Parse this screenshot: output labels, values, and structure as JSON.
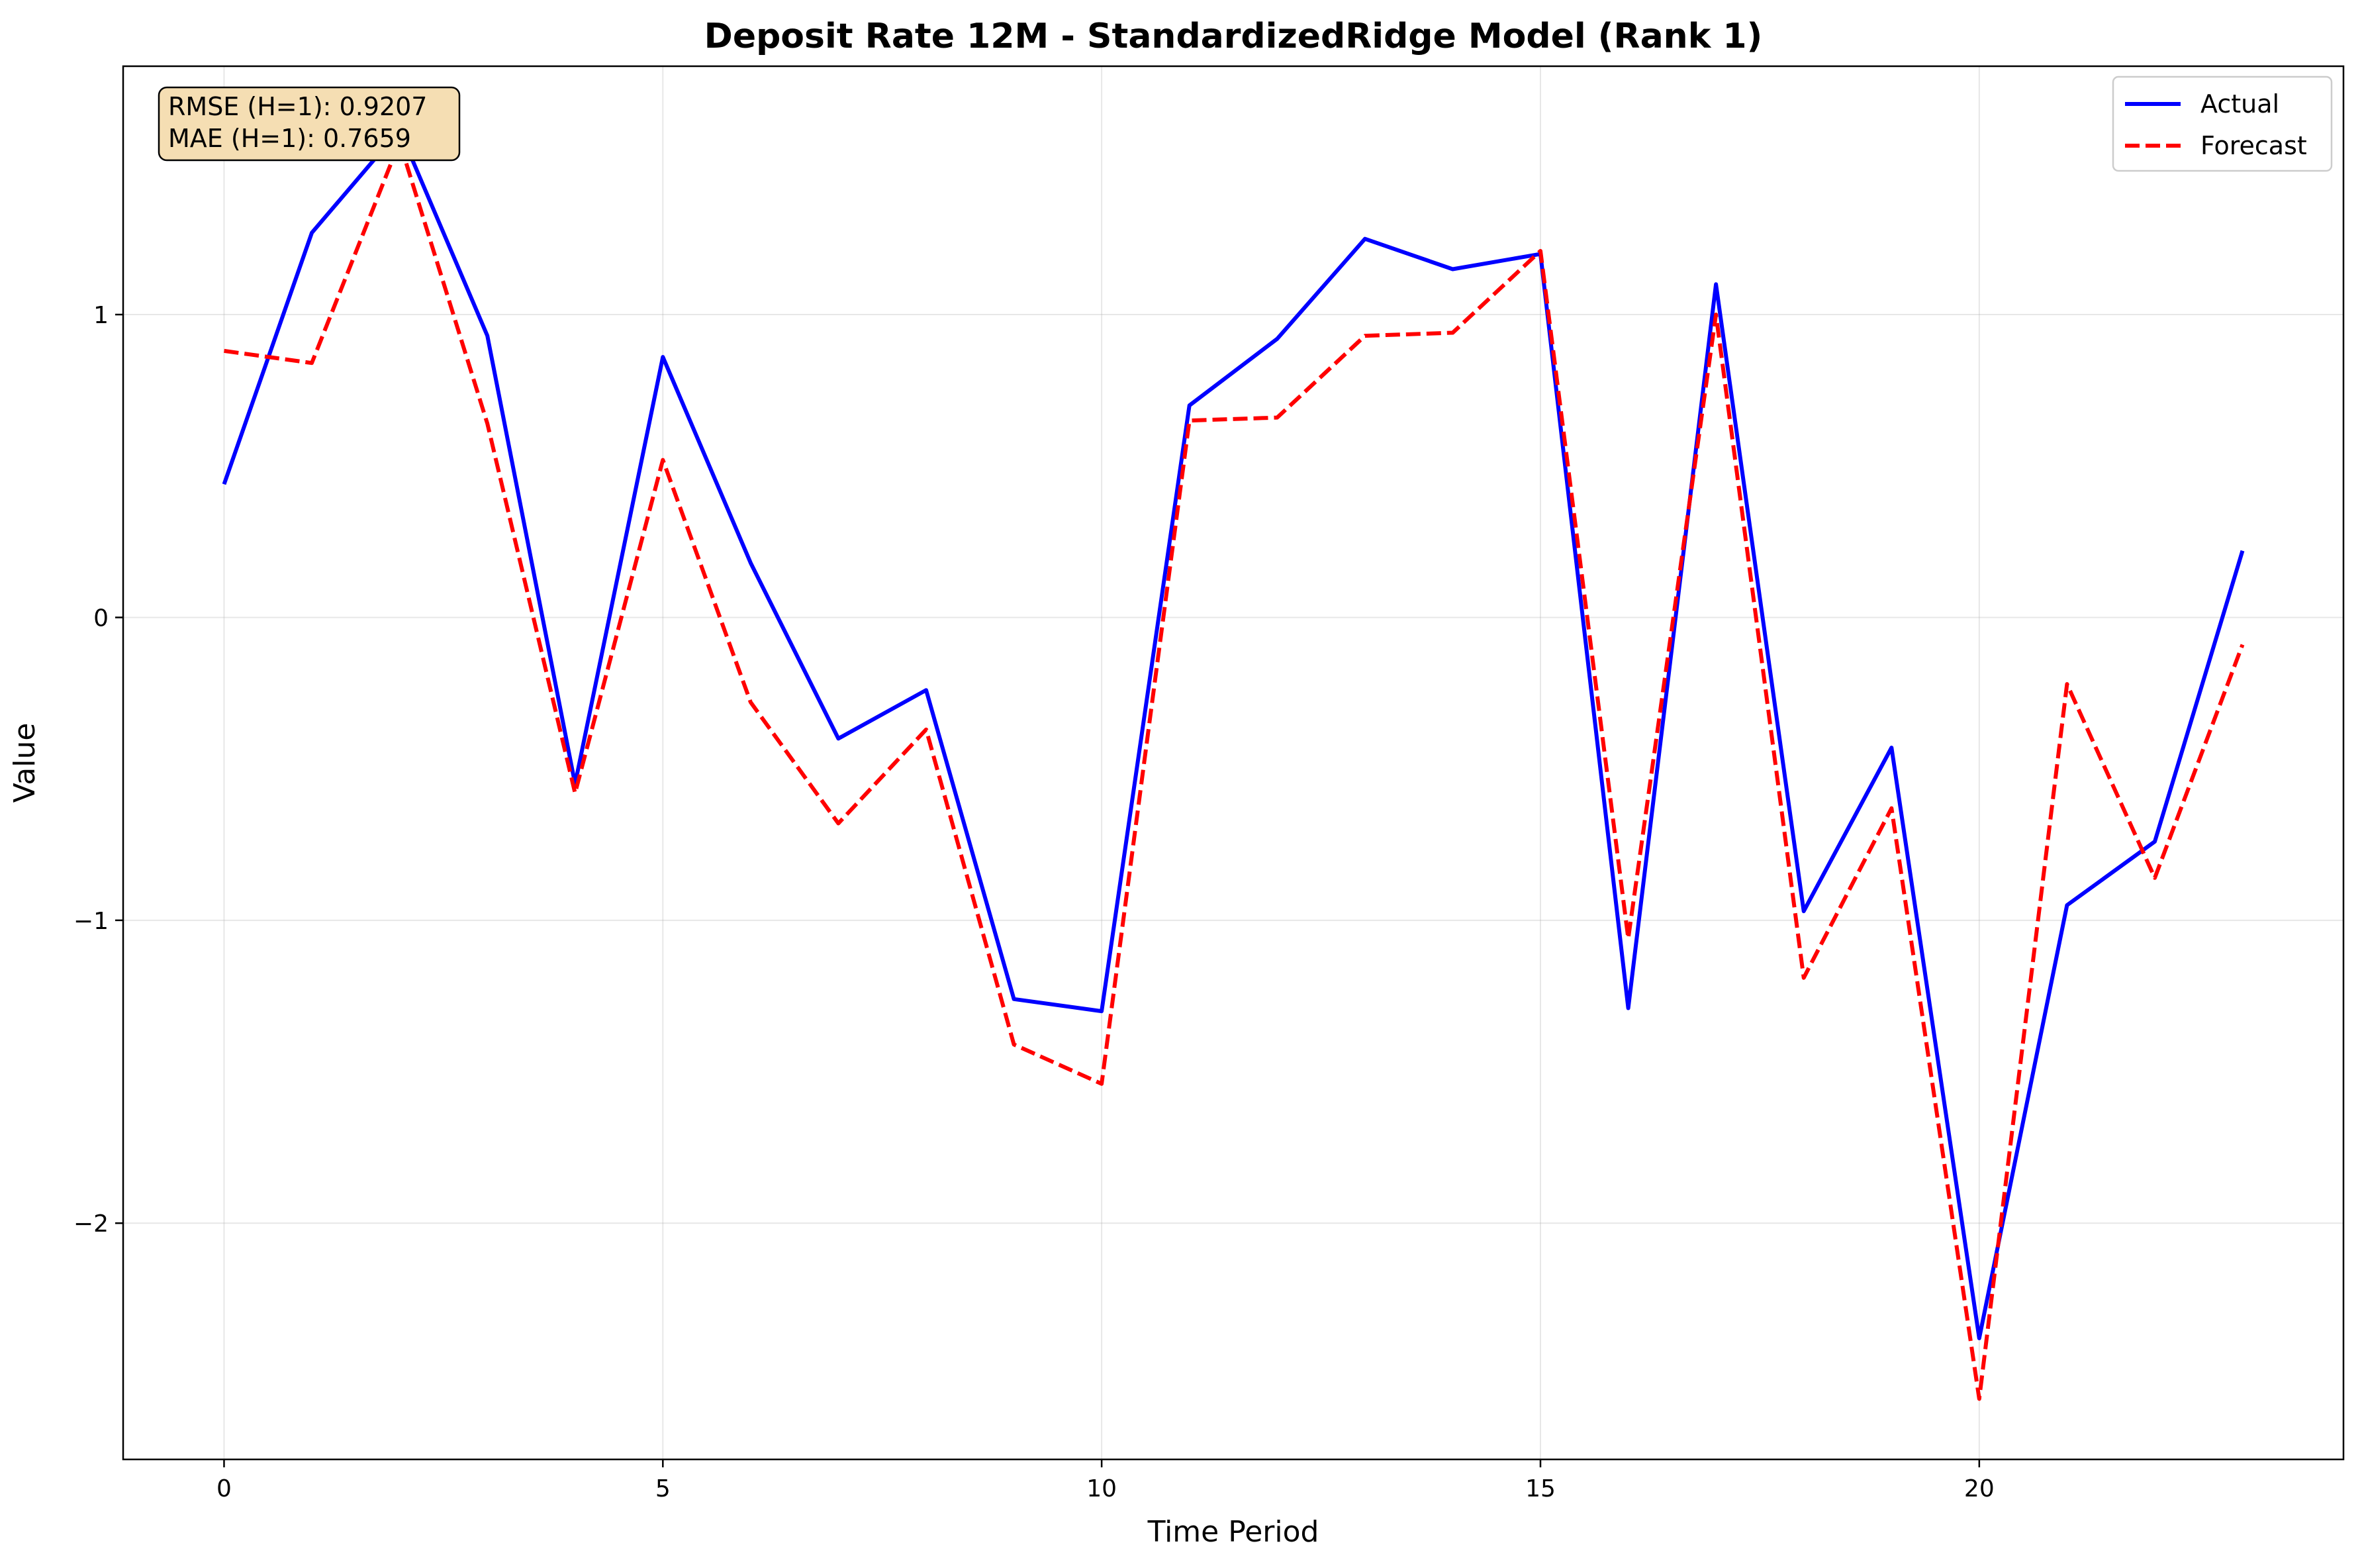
{
  "chart_data": {
    "type": "line",
    "title": "Deposit Rate 12M - StandardizedRidge Model (Rank 1)",
    "xlabel": "Time Period",
    "ylabel": "Value",
    "xlim": [
      -1.15,
      24.15
    ],
    "ylim": [
      -2.78,
      1.82
    ],
    "xticks": [
      0,
      5,
      10,
      15,
      20
    ],
    "xtick_labels": [
      "0",
      "5",
      "10",
      "15",
      "20"
    ],
    "yticks": [
      -2,
      -1,
      0,
      1
    ],
    "ytick_labels": [
      "−2",
      "−1",
      "0",
      "1"
    ],
    "grid": true,
    "legend_position": "top-right",
    "x": [
      0,
      1,
      2,
      3,
      4,
      5,
      6,
      7,
      8,
      9,
      10,
      11,
      12,
      13,
      14,
      15,
      16,
      17,
      18,
      19,
      20,
      21,
      22,
      23
    ],
    "series": [
      {
        "name": "Actual",
        "color": "#0000ff",
        "style": "solid",
        "values": [
          0.44,
          1.27,
          1.61,
          0.93,
          -0.55,
          0.86,
          0.18,
          -0.4,
          -0.24,
          -1.26,
          -1.3,
          0.7,
          0.92,
          1.25,
          1.15,
          1.2,
          -1.29,
          1.1,
          -0.97,
          -0.43,
          -2.38,
          -0.95,
          -0.74,
          0.22
        ]
      },
      {
        "name": "Forecast",
        "color": "#ff0000",
        "style": "dashed",
        "values": [
          0.88,
          0.84,
          1.57,
          0.64,
          -0.58,
          0.52,
          -0.28,
          -0.68,
          -0.37,
          -1.41,
          -1.54,
          0.65,
          0.66,
          0.93,
          0.94,
          1.21,
          -1.06,
          1.0,
          -1.19,
          -0.63,
          -2.58,
          -0.22,
          -0.86,
          -0.09
        ]
      }
    ],
    "annotation": {
      "lines": [
        "RMSE (H=1): 0.9207",
        "MAE (H=1): 0.7659"
      ],
      "box_color": "#f5deb3",
      "position": "top-left"
    }
  }
}
